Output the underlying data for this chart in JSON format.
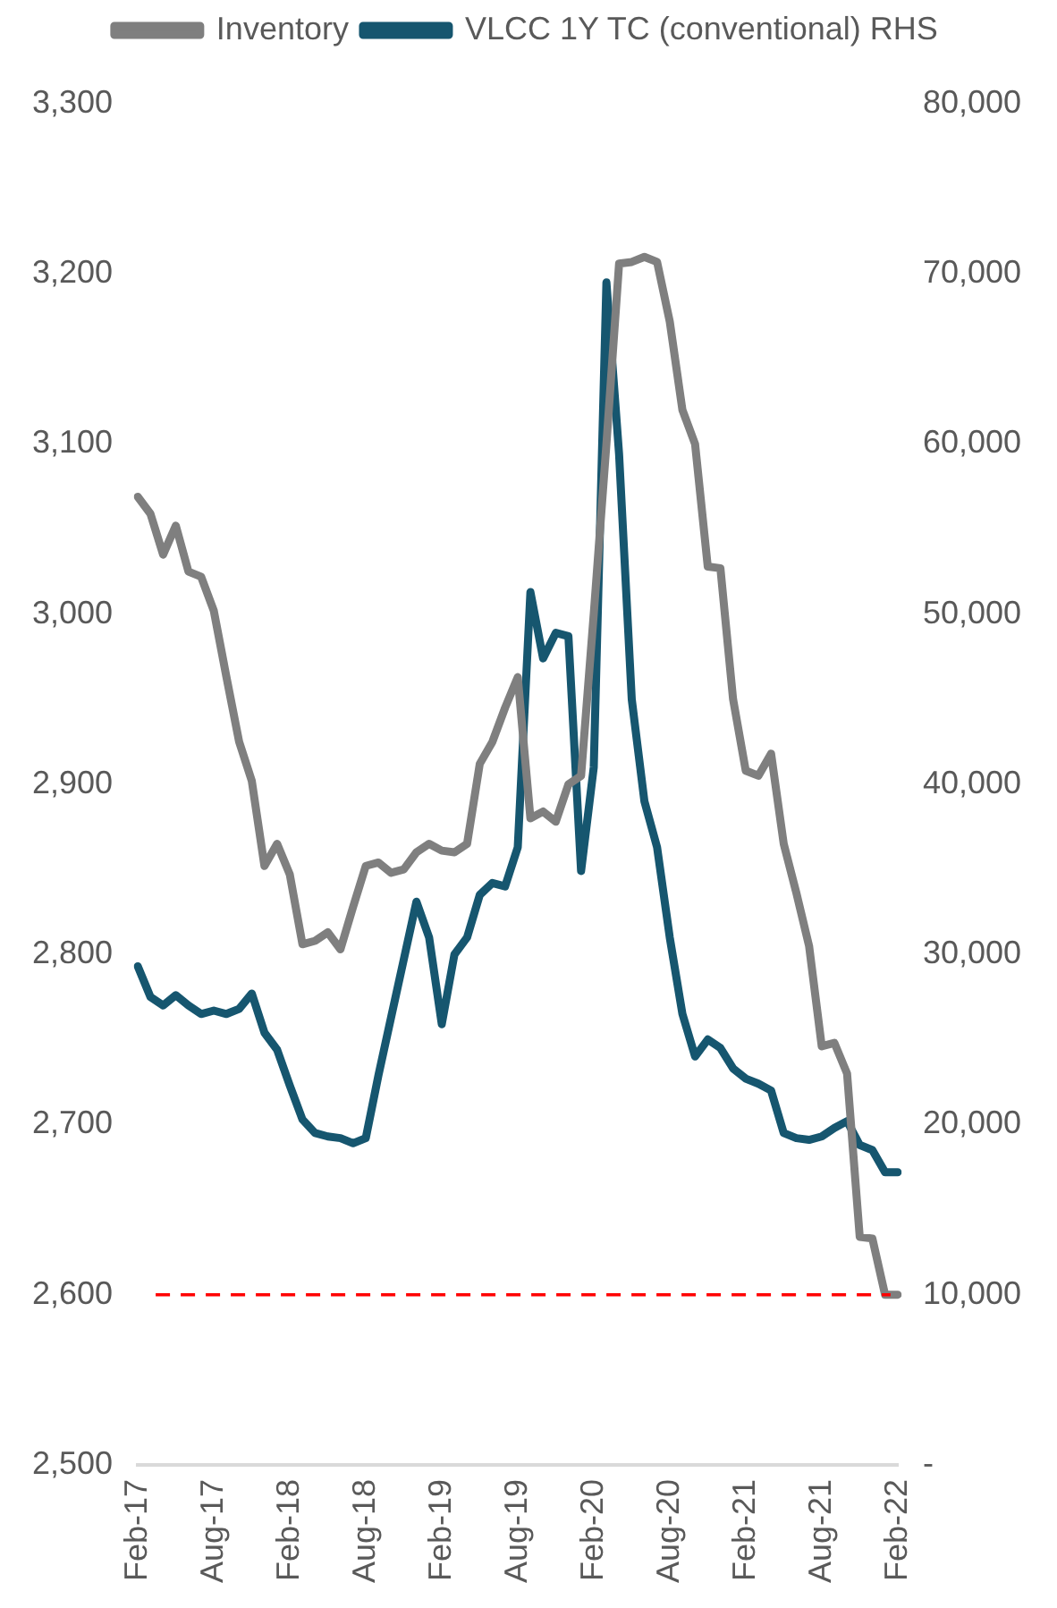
{
  "chart_data": {
    "type": "line",
    "categories": [
      "Feb-17",
      null,
      null,
      null,
      null,
      null,
      "Aug-17",
      null,
      null,
      null,
      null,
      null,
      "Feb-18",
      null,
      null,
      null,
      null,
      null,
      "Aug-18",
      null,
      null,
      null,
      null,
      null,
      "Feb-19",
      null,
      null,
      null,
      null,
      null,
      "Aug-19",
      null,
      null,
      null,
      null,
      null,
      "Feb-20",
      null,
      null,
      null,
      null,
      null,
      "Aug-20",
      null,
      null,
      null,
      null,
      null,
      "Feb-21",
      null,
      null,
      null,
      null,
      null,
      "Aug-21",
      null,
      null,
      null,
      null,
      null,
      "Feb-22"
    ],
    "series": [
      {
        "name": "Inventory",
        "color": "#7f7f7f",
        "values": [
          3069,
          3059,
          3035,
          3052,
          3025,
          3022,
          3002,
          2963,
          2925,
          2902,
          2852,
          2865,
          2847,
          2806,
          2808,
          2813,
          2803,
          2828,
          2852,
          2854,
          2848,
          2850,
          2860,
          2865,
          2861,
          2860,
          2865,
          2912,
          2925,
          2945,
          2963,
          2880,
          2884,
          2878,
          2900,
          2905,
          3000,
          3100,
          3206,
          3207,
          3210,
          3207,
          3172,
          3120,
          3100,
          3028,
          3027,
          2950,
          2908,
          2905,
          2918,
          2865,
          2836,
          2805,
          2746,
          2748,
          2730,
          2634,
          2633,
          2600,
          2600
        ]
      },
      {
        "name": "VLCC 1Y TC (conventional) RHS",
        "color": "#16566f",
        "axis": "y2",
        "values": [
          29300,
          27500,
          27000,
          27600,
          27000,
          26500,
          26700,
          26500,
          26800,
          27700,
          25400,
          24400,
          22300,
          20300,
          19500,
          19300,
          19200,
          18900,
          19200,
          22900,
          26300,
          29700,
          33100,
          31000,
          25900,
          30000,
          31000,
          33500,
          34200,
          34000,
          36300,
          51300,
          47400,
          48900,
          48700,
          34900,
          41000,
          69500,
          59400,
          45000,
          39000,
          36300,
          31000,
          26500,
          24000,
          25000,
          24500,
          23300,
          22700,
          22400,
          22000,
          19500,
          19200,
          19100,
          19300,
          19800,
          20200,
          18800,
          18500,
          17200,
          17200
        ]
      }
    ],
    "ylim": [
      2500,
      3300
    ],
    "yticks": [
      {
        "value": 2500,
        "label": "2,500"
      },
      {
        "value": 2600,
        "label": "2,600"
      },
      {
        "value": 2700,
        "label": "2,700"
      },
      {
        "value": 2800,
        "label": "2,800"
      },
      {
        "value": 2900,
        "label": "2,900"
      },
      {
        "value": 3000,
        "label": "3,000"
      },
      {
        "value": 3100,
        "label": "3,100"
      },
      {
        "value": 3200,
        "label": "3,200"
      },
      {
        "value": 3300,
        "label": "3,300"
      }
    ],
    "y2lim": [
      0,
      80000
    ],
    "y2ticks": [
      {
        "value": 0,
        "label": "-"
      },
      {
        "value": 10000,
        "label": "10,000"
      },
      {
        "value": 20000,
        "label": "20,000"
      },
      {
        "value": 30000,
        "label": "30,000"
      },
      {
        "value": 40000,
        "label": "40,000"
      },
      {
        "value": 50000,
        "label": "50,000"
      },
      {
        "value": 60000,
        "label": "60,000"
      },
      {
        "value": 70000,
        "label": "70,000"
      },
      {
        "value": 80000,
        "label": "80,000"
      }
    ],
    "ref_lines": [
      {
        "axis": "y",
        "value": 2600,
        "color": "#ff0000",
        "line_style": "dashed"
      }
    ],
    "legend": "top",
    "marker": "none",
    "line_style": "solid"
  }
}
